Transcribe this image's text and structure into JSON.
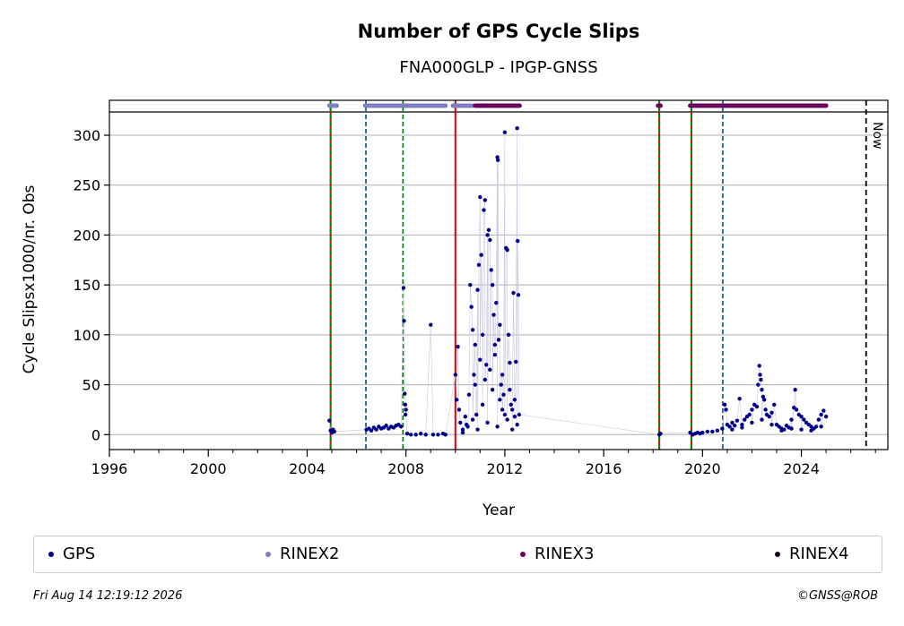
{
  "chart_data": {
    "type": "scatter",
    "title": "Number of GPS Cycle Slips",
    "subtitle": "FNA000GLP - IPGP-GNSS",
    "xlabel": "Year",
    "ylabel": "Cycle Slipsx1000/nr. Obs",
    "xlim": [
      1996,
      2027.5
    ],
    "ylim": [
      -15,
      335
    ],
    "x_ticks": [
      1996,
      2000,
      2004,
      2008,
      2012,
      2016,
      2020,
      2024
    ],
    "y_ticks": [
      0,
      50,
      100,
      150,
      200,
      250,
      300
    ],
    "grid": "horizontal",
    "now_line": {
      "x": 2026.62,
      "label": "Now"
    },
    "event_lines": [
      {
        "x": 2004.95,
        "style": "red-green"
      },
      {
        "x": 2006.38,
        "style": "blue-dashed"
      },
      {
        "x": 2007.88,
        "style": "green-dashed"
      },
      {
        "x": 2010.0,
        "style": "red-solid"
      },
      {
        "x": 2018.25,
        "style": "red-green"
      },
      {
        "x": 2019.55,
        "style": "red-green"
      },
      {
        "x": 2020.82,
        "style": "blue-dashed"
      }
    ],
    "availability": [
      {
        "series": "RINEX2",
        "start": 2004.9,
        "end": 2005.2
      },
      {
        "series": "RINEX2",
        "start": 2006.35,
        "end": 2009.6
      },
      {
        "series": "RINEX2",
        "start": 2009.9,
        "end": 2010.7
      },
      {
        "series": "RINEX3",
        "start": 2010.8,
        "end": 2012.6
      },
      {
        "series": "RINEX3",
        "start": 2018.2,
        "end": 2018.3
      },
      {
        "series": "RINEX3",
        "start": 2019.5,
        "end": 2025.0
      }
    ],
    "series": [
      {
        "name": "GPS",
        "color": "#00008b",
        "points": [
          [
            2004.9,
            14
          ],
          [
            2004.95,
            4
          ],
          [
            2005.0,
            2
          ],
          [
            2005.05,
            5
          ],
          [
            2005.1,
            3
          ],
          [
            2006.4,
            5
          ],
          [
            2006.5,
            6
          ],
          [
            2006.6,
            4
          ],
          [
            2006.7,
            7
          ],
          [
            2006.8,
            5
          ],
          [
            2006.9,
            8
          ],
          [
            2007.0,
            6
          ],
          [
            2007.1,
            7
          ],
          [
            2007.2,
            9
          ],
          [
            2007.3,
            6
          ],
          [
            2007.4,
            8
          ],
          [
            2007.5,
            7
          ],
          [
            2007.6,
            9
          ],
          [
            2007.7,
            10
          ],
          [
            2007.8,
            8
          ],
          [
            2007.9,
            147
          ],
          [
            2007.92,
            114
          ],
          [
            2007.95,
            41
          ],
          [
            2007.97,
            30
          ],
          [
            2008.0,
            25
          ],
          [
            2007.98,
            20
          ],
          [
            2008.05,
            1
          ],
          [
            2008.2,
            0
          ],
          [
            2008.4,
            0
          ],
          [
            2008.6,
            1
          ],
          [
            2008.8,
            0
          ],
          [
            2009.0,
            110
          ],
          [
            2009.1,
            0
          ],
          [
            2009.3,
            0
          ],
          [
            2009.5,
            1
          ],
          [
            2009.6,
            0
          ],
          [
            2010.0,
            60
          ],
          [
            2010.05,
            35
          ],
          [
            2010.1,
            88
          ],
          [
            2010.15,
            25
          ],
          [
            2010.2,
            12
          ],
          [
            2010.3,
            5
          ],
          [
            2010.4,
            18
          ],
          [
            2010.5,
            8
          ],
          [
            2010.55,
            40
          ],
          [
            2010.6,
            150
          ],
          [
            2010.65,
            128
          ],
          [
            2010.7,
            105
          ],
          [
            2010.75,
            60
          ],
          [
            2010.8,
            90
          ],
          [
            2010.85,
            20
          ],
          [
            2010.9,
            145
          ],
          [
            2010.95,
            170
          ],
          [
            2011.0,
            238
          ],
          [
            2011.05,
            180
          ],
          [
            2011.1,
            100
          ],
          [
            2011.15,
            225
          ],
          [
            2011.2,
            235
          ],
          [
            2011.25,
            70
          ],
          [
            2011.3,
            200
          ],
          [
            2011.35,
            205
          ],
          [
            2011.4,
            195
          ],
          [
            2011.45,
            165
          ],
          [
            2011.5,
            150
          ],
          [
            2011.55,
            120
          ],
          [
            2011.6,
            90
          ],
          [
            2011.65,
            132
          ],
          [
            2011.7,
            278
          ],
          [
            2011.72,
            275
          ],
          [
            2011.75,
            95
          ],
          [
            2011.8,
            110
          ],
          [
            2011.85,
            50
          ],
          [
            2011.9,
            60
          ],
          [
            2011.95,
            40
          ],
          [
            2012.0,
            303
          ],
          [
            2012.05,
            187
          ],
          [
            2012.1,
            185
          ],
          [
            2012.15,
            100
          ],
          [
            2012.2,
            72
          ],
          [
            2012.25,
            30
          ],
          [
            2012.3,
            25
          ],
          [
            2012.35,
            142
          ],
          [
            2012.4,
            35
          ],
          [
            2012.45,
            73
          ],
          [
            2012.5,
            307
          ],
          [
            2012.52,
            194
          ],
          [
            2012.55,
            140
          ],
          [
            2012.58,
            20
          ],
          [
            2010.3,
            2
          ],
          [
            2010.45,
            10
          ],
          [
            2010.7,
            15
          ],
          [
            2010.9,
            5
          ],
          [
            2011.1,
            30
          ],
          [
            2011.3,
            12
          ],
          [
            2011.5,
            45
          ],
          [
            2011.7,
            8
          ],
          [
            2011.9,
            25
          ],
          [
            2012.1,
            15
          ],
          [
            2012.3,
            5
          ],
          [
            2012.5,
            10
          ],
          [
            2011.2,
            55
          ],
          [
            2011.4,
            65
          ],
          [
            2011.6,
            80
          ],
          [
            2011.8,
            35
          ],
          [
            2012.0,
            20
          ],
          [
            2012.2,
            45
          ],
          [
            2012.4,
            18
          ],
          [
            2010.8,
            50
          ],
          [
            2011.0,
            75
          ],
          [
            2018.25,
            0
          ],
          [
            2018.3,
            1
          ],
          [
            2019.5,
            2
          ],
          [
            2019.6,
            0
          ],
          [
            2019.7,
            1
          ],
          [
            2019.8,
            2
          ],
          [
            2019.9,
            1
          ],
          [
            2020.0,
            2
          ],
          [
            2020.2,
            3
          ],
          [
            2020.4,
            3
          ],
          [
            2020.6,
            4
          ],
          [
            2020.8,
            6
          ],
          [
            2020.9,
            30
          ],
          [
            2020.95,
            25
          ],
          [
            2021.0,
            10
          ],
          [
            2021.1,
            8
          ],
          [
            2021.2,
            12
          ],
          [
            2021.3,
            9
          ],
          [
            2021.4,
            14
          ],
          [
            2021.5,
            36
          ],
          [
            2021.6,
            10
          ],
          [
            2021.7,
            15
          ],
          [
            2021.8,
            18
          ],
          [
            2021.9,
            20
          ],
          [
            2022.0,
            25
          ],
          [
            2022.1,
            30
          ],
          [
            2022.2,
            28
          ],
          [
            2022.25,
            50
          ],
          [
            2022.3,
            69
          ],
          [
            2022.33,
            60
          ],
          [
            2022.36,
            55
          ],
          [
            2022.4,
            45
          ],
          [
            2022.45,
            38
          ],
          [
            2022.5,
            35
          ],
          [
            2022.55,
            25
          ],
          [
            2022.6,
            20
          ],
          [
            2022.7,
            18
          ],
          [
            2022.8,
            22
          ],
          [
            2022.9,
            30
          ],
          [
            2023.0,
            10
          ],
          [
            2023.1,
            8
          ],
          [
            2023.2,
            6
          ],
          [
            2023.3,
            5
          ],
          [
            2023.4,
            9
          ],
          [
            2023.5,
            7
          ],
          [
            2023.6,
            15
          ],
          [
            2023.7,
            27
          ],
          [
            2023.75,
            45
          ],
          [
            2023.8,
            25
          ],
          [
            2023.9,
            20
          ],
          [
            2024.0,
            18
          ],
          [
            2024.1,
            15
          ],
          [
            2024.2,
            12
          ],
          [
            2024.3,
            10
          ],
          [
            2024.4,
            8
          ],
          [
            2024.5,
            6
          ],
          [
            2024.6,
            8
          ],
          [
            2024.7,
            15
          ],
          [
            2024.8,
            20
          ],
          [
            2024.9,
            24
          ],
          [
            2025.0,
            18
          ],
          [
            2021.2,
            5
          ],
          [
            2021.6,
            7
          ],
          [
            2022.0,
            12
          ],
          [
            2022.4,
            15
          ],
          [
            2022.8,
            10
          ],
          [
            2023.2,
            4
          ],
          [
            2023.6,
            6
          ],
          [
            2024.0,
            5
          ],
          [
            2024.4,
            4
          ],
          [
            2024.8,
            8
          ]
        ]
      },
      {
        "name": "RINEX2",
        "color": "#7f7fbf",
        "points": []
      },
      {
        "name": "RINEX3",
        "color": "#6a005f",
        "points": []
      },
      {
        "name": "RINEX4",
        "color": "#220022",
        "points": []
      }
    ]
  },
  "footer": {
    "timestamp": "Fri Aug 14 12:19:12 2026",
    "credit": "©GNSS@ROB"
  }
}
